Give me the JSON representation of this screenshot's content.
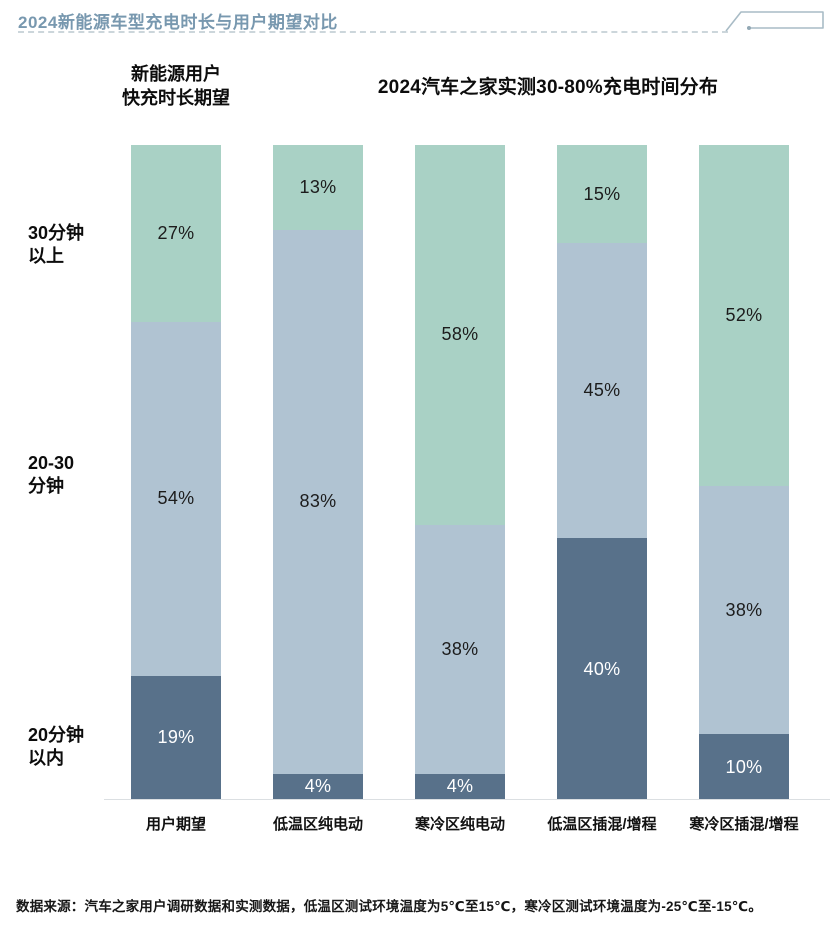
{
  "page": {
    "title": "2024新能源车型充电时长与用户期望对比",
    "source_note": "数据来源：汽车之家用户调研数据和实测数据，低温区测试环境温度为5℃至15℃，寒冷区测试环境温度为-25℃至-15℃。"
  },
  "headers": {
    "left": "新能源用户\n快充时长期望",
    "right": "2024汽车之家实测30-80%充电时间分布"
  },
  "chart_data": {
    "type": "bar",
    "stacked": true,
    "unit": "%",
    "title": "2024新能源车型充电时长与用户期望对比",
    "categories": [
      "用户期望",
      "低温区纯电动",
      "寒冷区纯电动",
      "低温区插混/增程",
      "寒冷区插混/增程"
    ],
    "series": [
      {
        "name": "20分钟以内",
        "color": "#58718a",
        "label_color": "#ffffff",
        "values": [
          19,
          4,
          4,
          40,
          10
        ]
      },
      {
        "name": "20-30分钟",
        "color": "#b0c3d2",
        "label_color": "#1c1c1c",
        "values": [
          54,
          83,
          38,
          45,
          38
        ]
      },
      {
        "name": "30分钟以上",
        "color": "#a9d1c5",
        "label_color": "#1c1c1c",
        "values": [
          27,
          13,
          58,
          15,
          52
        ]
      }
    ],
    "y_axis_labels": [
      "30分钟\n以上",
      "20-30\n分钟",
      "20分钟\n以内"
    ],
    "ylim": [
      0,
      100
    ],
    "grid": false,
    "legend": "none",
    "value_labels": "inside"
  }
}
